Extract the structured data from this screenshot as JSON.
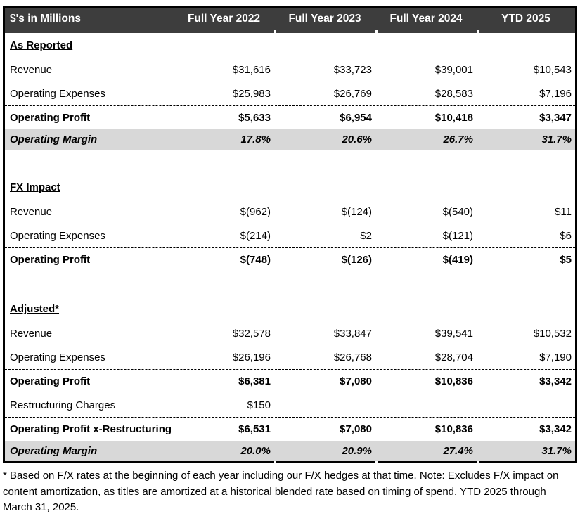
{
  "table": {
    "header": {
      "label": "$'s in Millions",
      "columns": [
        "Full Year 2022",
        "Full Year 2023",
        "Full Year 2024",
        "YTD 2025"
      ]
    },
    "sections": [
      {
        "title": "As Reported",
        "rows": [
          {
            "label": "Revenue",
            "values": [
              "$31,616",
              "$33,723",
              "$39,001",
              "$10,543"
            ],
            "style": "normal"
          },
          {
            "label": "Operating Expenses",
            "values": [
              "$25,983",
              "$26,769",
              "$28,583",
              "$7,196"
            ],
            "style": "normal"
          },
          {
            "label": "Operating Profit",
            "values": [
              "$5,633",
              "$6,954",
              "$10,418",
              "$3,347"
            ],
            "style": "total"
          },
          {
            "label": "Operating Margin",
            "values": [
              "17.8%",
              "20.6%",
              "26.7%",
              "31.7%"
            ],
            "style": "margin"
          }
        ]
      },
      {
        "title": "FX Impact",
        "rows": [
          {
            "label": "Revenue",
            "values": [
              "$(962)",
              "$(124)",
              "$(540)",
              "$11"
            ],
            "style": "normal"
          },
          {
            "label": "Operating Expenses",
            "values": [
              "$(214)",
              "$2",
              "$(121)",
              "$6"
            ],
            "style": "normal"
          },
          {
            "label": "Operating Profit",
            "values": [
              "$(748)",
              "$(126)",
              "$(419)",
              "$5"
            ],
            "style": "total"
          }
        ]
      },
      {
        "title": "Adjusted*",
        "rows": [
          {
            "label": "Revenue",
            "values": [
              "$32,578",
              "$33,847",
              "$39,541",
              "$10,532"
            ],
            "style": "normal"
          },
          {
            "label": "Operating Expenses",
            "values": [
              "$26,196",
              "$26,768",
              "$28,704",
              "$7,190"
            ],
            "style": "normal"
          },
          {
            "label": "Operating Profit",
            "values": [
              "$6,381",
              "$7,080",
              "$10,836",
              "$3,342"
            ],
            "style": "total"
          },
          {
            "label": "Restructuring Charges",
            "values": [
              "$150",
              "",
              "",
              ""
            ],
            "style": "normal"
          },
          {
            "label": "Operating Profit x-Restructuring",
            "values": [
              "$6,531",
              "$7,080",
              "$10,836",
              "$3,342"
            ],
            "style": "total"
          },
          {
            "label": "Operating Margin",
            "values": [
              "20.0%",
              "20.9%",
              "27.4%",
              "31.7%"
            ],
            "style": "margin"
          }
        ]
      }
    ],
    "footnote": "* Based on F/X rates at the beginning of each year including our F/X hedges at that time. Note: Excludes F/X impact on content amortization, as titles are amortized at a historical blended rate based on timing of spend. YTD 2025 through March 31, 2025."
  },
  "colors": {
    "header_bg": "#3d3d3d",
    "header_text": "#ffffff",
    "margin_row_bg": "#d8d8d8",
    "border": "#000000",
    "body_text": "#000000"
  }
}
